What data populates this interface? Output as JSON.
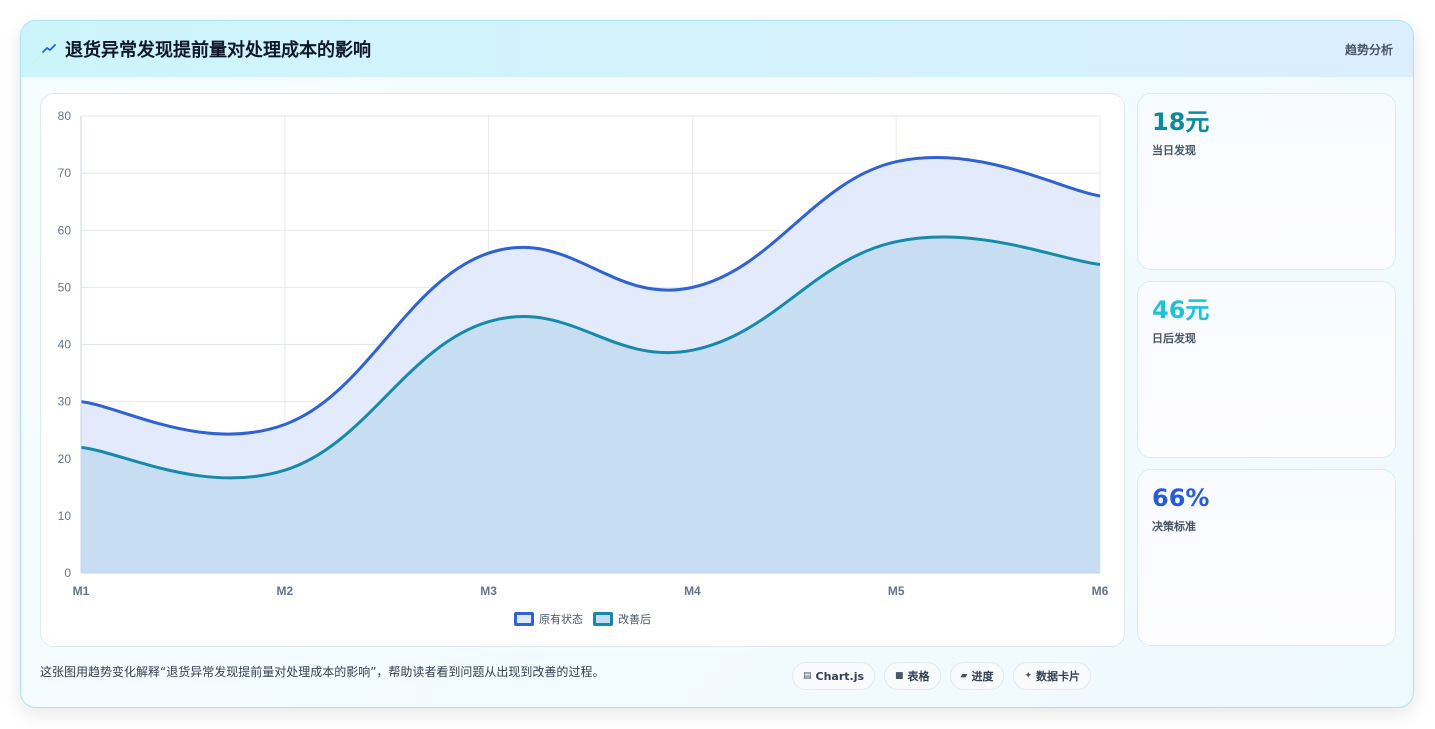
{
  "header": {
    "title": "退货异常发现提前量对处理成本的影响",
    "badge": "趋势分析"
  },
  "stats": [
    {
      "value": "18元",
      "label": "当日发现",
      "color": "#0e8a9e"
    },
    {
      "value": "46元",
      "label": "日后发现",
      "color": "#1ec3d8"
    },
    {
      "value": "66%",
      "label": "决策标准",
      "color": "#2a5bd7"
    }
  ],
  "footer": {
    "text": "这张图用趋势变化解释“退货异常发现提前量对处理成本的影响”，帮助读者看到问题从出现到改善的过程。",
    "pills": [
      {
        "icon": "chart-icon",
        "glyph": "▤",
        "label": "Chart.js"
      },
      {
        "icon": "table-icon",
        "glyph": "■",
        "label": "表格"
      },
      {
        "icon": "progress-icon",
        "glyph": "▰",
        "label": "进度"
      },
      {
        "icon": "sparkle-icon",
        "glyph": "✦",
        "label": "数据卡片"
      }
    ]
  },
  "chart_data": {
    "type": "area",
    "categories": [
      "M1",
      "M2",
      "M3",
      "M4",
      "M5",
      "M6"
    ],
    "series": [
      {
        "name": "原有状态",
        "values": [
          30,
          26,
          56,
          50,
          72,
          66
        ],
        "color": "#2f62d3",
        "fill": "#e0e9fb"
      },
      {
        "name": "改善后",
        "values": [
          22,
          18,
          44,
          39,
          58,
          54
        ],
        "color": "#168aaa",
        "fill": "#c4dcf1"
      }
    ],
    "ylim": [
      0,
      80
    ],
    "yticks": [
      0,
      10,
      20,
      30,
      40,
      50,
      60,
      70,
      80
    ],
    "grid": true,
    "legend_position": "bottom"
  }
}
